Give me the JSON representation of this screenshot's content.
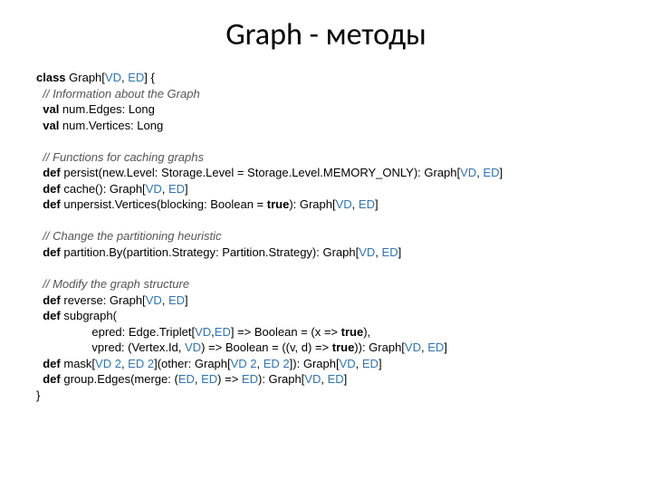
{
  "title": "Graph - методы",
  "colors": {
    "type": "#2e74b5",
    "comment": "#555555",
    "text": "#000000",
    "background": "#ffffff"
  },
  "fonts": {
    "title_family": "Calibri",
    "title_size_pt": 26,
    "code_family": "Arial",
    "code_size_pt": 10
  },
  "code_tokens": [
    [
      {
        "t": "kw",
        "v": "class "
      },
      {
        "t": "",
        "v": "Graph["
      },
      {
        "t": "tp",
        "v": "VD"
      },
      {
        "t": "",
        "v": ", "
      },
      {
        "t": "tp",
        "v": "ED"
      },
      {
        "t": "",
        "v": "] {"
      }
    ],
    [
      {
        "t": "",
        "v": "  "
      },
      {
        "t": "cm",
        "v": "// Information about the Graph"
      }
    ],
    [
      {
        "t": "",
        "v": "  "
      },
      {
        "t": "kw",
        "v": "val "
      },
      {
        "t": "",
        "v": "num.Edges: Long"
      }
    ],
    [
      {
        "t": "",
        "v": "  "
      },
      {
        "t": "kw",
        "v": "val "
      },
      {
        "t": "",
        "v": "num.Vertices: Long"
      }
    ],
    [
      {
        "t": "",
        "v": " "
      }
    ],
    [
      {
        "t": "",
        "v": "  "
      },
      {
        "t": "cm",
        "v": "// Functions for caching graphs"
      }
    ],
    [
      {
        "t": "",
        "v": "  "
      },
      {
        "t": "kw",
        "v": "def "
      },
      {
        "t": "",
        "v": "persist(new.Level: Storage.Level = Storage.Level.MEMORY_ONLY): Graph["
      },
      {
        "t": "tp",
        "v": "VD"
      },
      {
        "t": "",
        "v": ", "
      },
      {
        "t": "tp",
        "v": "ED"
      },
      {
        "t": "",
        "v": "]"
      }
    ],
    [
      {
        "t": "",
        "v": "  "
      },
      {
        "t": "kw",
        "v": "def "
      },
      {
        "t": "",
        "v": "cache(): Graph["
      },
      {
        "t": "tp",
        "v": "VD"
      },
      {
        "t": "",
        "v": ", "
      },
      {
        "t": "tp",
        "v": "ED"
      },
      {
        "t": "",
        "v": "]"
      }
    ],
    [
      {
        "t": "",
        "v": "  "
      },
      {
        "t": "kw",
        "v": "def "
      },
      {
        "t": "",
        "v": "unpersist.Vertices(blocking: Boolean = "
      },
      {
        "t": "kw",
        "v": "true"
      },
      {
        "t": "",
        "v": "): Graph["
      },
      {
        "t": "tp",
        "v": "VD"
      },
      {
        "t": "",
        "v": ", "
      },
      {
        "t": "tp",
        "v": "ED"
      },
      {
        "t": "",
        "v": "]"
      }
    ],
    [
      {
        "t": "",
        "v": " "
      }
    ],
    [
      {
        "t": "",
        "v": "  "
      },
      {
        "t": "cm",
        "v": "// Change the partitioning heuristic"
      }
    ],
    [
      {
        "t": "",
        "v": "  "
      },
      {
        "t": "kw",
        "v": "def "
      },
      {
        "t": "",
        "v": "partition.By(partition.Strategy: Partition.Strategy): Graph["
      },
      {
        "t": "tp",
        "v": "VD"
      },
      {
        "t": "",
        "v": ", "
      },
      {
        "t": "tp",
        "v": "ED"
      },
      {
        "t": "",
        "v": "]"
      }
    ],
    [
      {
        "t": "",
        "v": " "
      }
    ],
    [
      {
        "t": "",
        "v": "  "
      },
      {
        "t": "cm",
        "v": "// Modify the graph structure"
      }
    ],
    [
      {
        "t": "",
        "v": "  "
      },
      {
        "t": "kw",
        "v": "def "
      },
      {
        "t": "",
        "v": "reverse: Graph["
      },
      {
        "t": "tp",
        "v": "VD"
      },
      {
        "t": "",
        "v": ", "
      },
      {
        "t": "tp",
        "v": "ED"
      },
      {
        "t": "",
        "v": "]"
      }
    ],
    [
      {
        "t": "",
        "v": "  "
      },
      {
        "t": "kw",
        "v": "def "
      },
      {
        "t": "",
        "v": "subgraph("
      }
    ],
    [
      {
        "t": "",
        "v": "                 epred: Edge.Triplet["
      },
      {
        "t": "tp",
        "v": "VD"
      },
      {
        "t": "",
        "v": ","
      },
      {
        "t": "tp",
        "v": "ED"
      },
      {
        "t": "",
        "v": "] => Boolean = (x => "
      },
      {
        "t": "kw",
        "v": "true"
      },
      {
        "t": "",
        "v": "),"
      }
    ],
    [
      {
        "t": "",
        "v": "                 vpred: (Vertex.Id, "
      },
      {
        "t": "tp",
        "v": "VD"
      },
      {
        "t": "",
        "v": ") => Boolean = ((v, d) => "
      },
      {
        "t": "kw",
        "v": "true"
      },
      {
        "t": "",
        "v": ")): Graph["
      },
      {
        "t": "tp",
        "v": "VD"
      },
      {
        "t": "",
        "v": ", "
      },
      {
        "t": "tp",
        "v": "ED"
      },
      {
        "t": "",
        "v": "]"
      }
    ],
    [
      {
        "t": "",
        "v": "  "
      },
      {
        "t": "kw",
        "v": "def "
      },
      {
        "t": "",
        "v": "mask["
      },
      {
        "t": "tp",
        "v": "VD 2"
      },
      {
        "t": "",
        "v": ", "
      },
      {
        "t": "tp",
        "v": "ED 2"
      },
      {
        "t": "",
        "v": "](other: Graph["
      },
      {
        "t": "tp",
        "v": "VD 2"
      },
      {
        "t": "",
        "v": ", "
      },
      {
        "t": "tp",
        "v": "ED 2"
      },
      {
        "t": "",
        "v": "]): Graph["
      },
      {
        "t": "tp",
        "v": "VD"
      },
      {
        "t": "",
        "v": ", "
      },
      {
        "t": "tp",
        "v": "ED"
      },
      {
        "t": "",
        "v": "]"
      }
    ],
    [
      {
        "t": "",
        "v": "  "
      },
      {
        "t": "kw",
        "v": "def "
      },
      {
        "t": "",
        "v": "group.Edges(merge: ("
      },
      {
        "t": "tp",
        "v": "ED"
      },
      {
        "t": "",
        "v": ", "
      },
      {
        "t": "tp",
        "v": "ED"
      },
      {
        "t": "",
        "v": ") => "
      },
      {
        "t": "tp",
        "v": "ED"
      },
      {
        "t": "",
        "v": "): Graph["
      },
      {
        "t": "tp",
        "v": "VD"
      },
      {
        "t": "",
        "v": ", "
      },
      {
        "t": "tp",
        "v": "ED"
      },
      {
        "t": "",
        "v": "]"
      }
    ],
    [
      {
        "t": "",
        "v": "}"
      }
    ]
  ]
}
